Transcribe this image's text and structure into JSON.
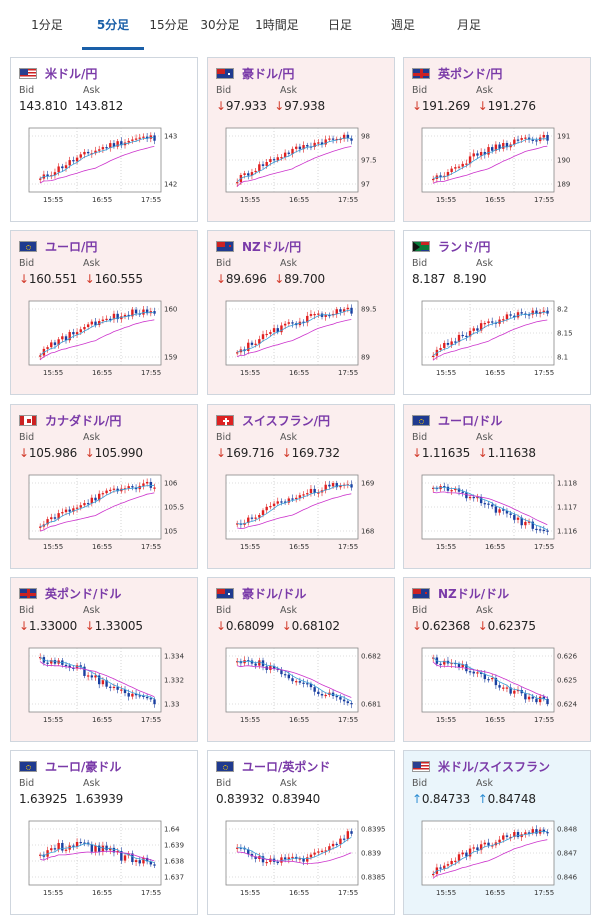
{
  "tabs": [
    {
      "label": "1分足",
      "active": false
    },
    {
      "label": "5分足",
      "active": true
    },
    {
      "label": "15分足",
      "active": false
    },
    {
      "label": "30分足",
      "active": false
    },
    {
      "label": "1時間足",
      "active": false
    },
    {
      "label": "日足",
      "active": false
    },
    {
      "label": "週足",
      "active": false
    },
    {
      "label": "月足",
      "active": false
    }
  ],
  "colors": {
    "accent": "#1a5fa8",
    "pair": "#7a3aa8",
    "down": "#d23a2a",
    "up": "#2a8bd2",
    "card_down_bg": "#fbeeee",
    "card_up_bg": "#eaf5fb",
    "candle_up": "#e02020",
    "candle_down": "#1a3fa0",
    "ma_short": "#3aa0d8",
    "ma_long": "#cc33cc"
  },
  "labels": {
    "bid": "Bid",
    "ask": "Ask"
  },
  "cards": [
    {
      "pair": "米ドル/円",
      "flag": "us-jp",
      "trend": "none",
      "bid": "143.810",
      "ask": "143.812",
      "yticks": [
        "143",
        "142"
      ],
      "xticks": [
        "15:55",
        "16:55",
        "17:55"
      ],
      "shape": "rise"
    },
    {
      "pair": "豪ドル/円",
      "flag": "au-jp",
      "trend": "down",
      "bid": "97.933",
      "ask": "97.938",
      "yticks": [
        "98",
        "97.5",
        "97"
      ],
      "xticks": [
        "15:55",
        "16:55",
        "17:55"
      ],
      "shape": "rise"
    },
    {
      "pair": "英ポンド/円",
      "flag": "gb-jp",
      "trend": "down",
      "bid": "191.269",
      "ask": "191.276",
      "yticks": [
        "191",
        "190",
        "189"
      ],
      "xticks": [
        "15:55",
        "16:55",
        "17:55"
      ],
      "shape": "rise"
    },
    {
      "pair": "ユーロ/円",
      "flag": "eu-jp",
      "trend": "down",
      "bid": "160.551",
      "ask": "160.555",
      "yticks": [
        "160",
        "159"
      ],
      "xticks": [
        "15:55",
        "16:55",
        "17:55"
      ],
      "shape": "rise"
    },
    {
      "pair": "NZドル/円",
      "flag": "nz-jp",
      "trend": "down",
      "bid": "89.696",
      "ask": "89.700",
      "yticks": [
        "89.5",
        "89"
      ],
      "xticks": [
        "15:55",
        "16:55",
        "17:55"
      ],
      "shape": "rise"
    },
    {
      "pair": "ランド/円",
      "flag": "za-jp",
      "trend": "none",
      "bid": "8.187",
      "ask": "8.190",
      "yticks": [
        "8.2",
        "8.15",
        "8.1"
      ],
      "xticks": [
        "15:55",
        "16:55",
        "17:55"
      ],
      "shape": "rise"
    },
    {
      "pair": "カナダドル/円",
      "flag": "ca-jp",
      "trend": "down",
      "bid": "105.986",
      "ask": "105.990",
      "yticks": [
        "106",
        "105.5",
        "105"
      ],
      "xticks": [
        "15:55",
        "16:55",
        "17:55"
      ],
      "shape": "rise"
    },
    {
      "pair": "スイスフラン/円",
      "flag": "ch-jp",
      "trend": "down",
      "bid": "169.716",
      "ask": "169.732",
      "yticks": [
        "169",
        "168"
      ],
      "xticks": [
        "15:55",
        "16:55",
        "17:55"
      ],
      "shape": "rise"
    },
    {
      "pair": "ユーロ/ドル",
      "flag": "eu-us",
      "trend": "down",
      "bid": "1.11635",
      "ask": "1.11638",
      "yticks": [
        "1.118",
        "1.117",
        "1.116"
      ],
      "xticks": [
        "15:55",
        "16:55",
        "17:55"
      ],
      "shape": "fall"
    },
    {
      "pair": "英ポンド/ドル",
      "flag": "gb-us",
      "trend": "down",
      "bid": "1.33000",
      "ask": "1.33005",
      "yticks": [
        "1.334",
        "1.332",
        "1.33"
      ],
      "xticks": [
        "15:55",
        "16:55",
        "17:55"
      ],
      "shape": "fall"
    },
    {
      "pair": "豪ドル/ドル",
      "flag": "au-us",
      "trend": "down",
      "bid": "0.68099",
      "ask": "0.68102",
      "yticks": [
        "0.682",
        "0.681"
      ],
      "xticks": [
        "15:55",
        "16:55",
        "17:55"
      ],
      "shape": "fall"
    },
    {
      "pair": "NZドル/ドル",
      "flag": "nz-us",
      "trend": "down",
      "bid": "0.62368",
      "ask": "0.62375",
      "yticks": [
        "0.626",
        "0.625",
        "0.624"
      ],
      "xticks": [
        "15:55",
        "16:55",
        "17:55"
      ],
      "shape": "fall"
    },
    {
      "pair": "ユーロ/豪ドル",
      "flag": "eu-au",
      "trend": "none",
      "bid": "1.63925",
      "ask": "1.63939",
      "yticks": [
        "1.64",
        "1.639",
        "1.638",
        "1.637"
      ],
      "xticks": [
        "15:55",
        "16:55",
        "17:55"
      ],
      "shape": "flat"
    },
    {
      "pair": "ユーロ/英ポンド",
      "flag": "eu-gb",
      "trend": "none",
      "bid": "0.83932",
      "ask": "0.83940",
      "yticks": [
        "0.8395",
        "0.839",
        "0.8385"
      ],
      "xticks": [
        "15:55",
        "16:55",
        "17:55"
      ],
      "shape": "dip"
    },
    {
      "pair": "米ドル/スイスフラン",
      "flag": "us-ch",
      "trend": "up",
      "bid": "0.84733",
      "ask": "0.84748",
      "yticks": [
        "0.848",
        "0.847",
        "0.846"
      ],
      "xticks": [
        "15:55",
        "16:55",
        "17:55"
      ],
      "shape": "rise"
    }
  ]
}
